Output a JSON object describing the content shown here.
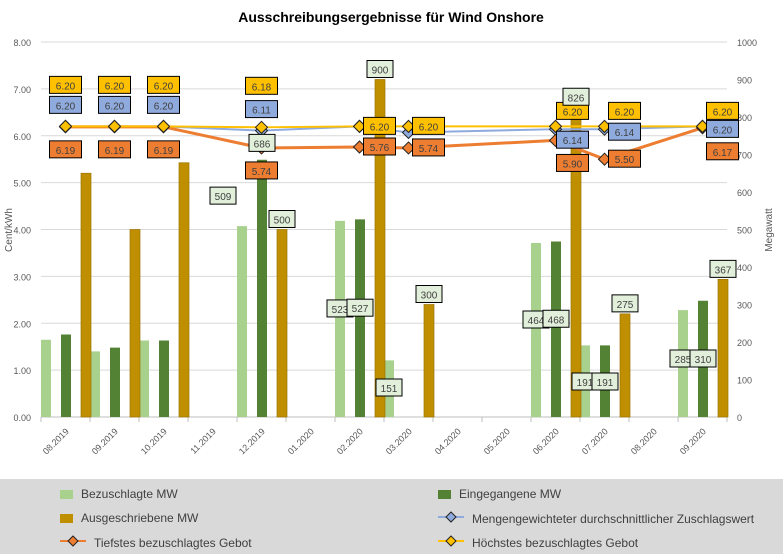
{
  "chart_data": {
    "type": "bar+line",
    "title": "Ausschreibungsergebnisse für Wind Onshore",
    "ylabel_left": "Cent/kWh",
    "ylabel_right": "Megawatt",
    "ylim_left": [
      0,
      8
    ],
    "ylim_right": [
      0,
      1000
    ],
    "yticks_left": [
      "0.00",
      "1.00",
      "2.00",
      "3.00",
      "4.00",
      "5.00",
      "6.00",
      "7.00",
      "8.00"
    ],
    "yticks_right": [
      "0",
      "100",
      "200",
      "300",
      "400",
      "500",
      "600",
      "700",
      "800",
      "900",
      "1000"
    ],
    "grid": true,
    "legend_position": "bottom",
    "categories": [
      "08.2019",
      "09.2019",
      "10.2019",
      "11.2019",
      "12.2019",
      "01.2020",
      "02.2020",
      "03.2020",
      "04.2020",
      "05.2020",
      "06.2020",
      "07.2020",
      "08.2020",
      "09.2020"
    ],
    "bar_series": [
      {
        "name": "Bezuschlagte MW",
        "color": "#a9d18e",
        "axis": "right",
        "values": [
          206,
          175,
          204,
          null,
          509,
          null,
          523,
          151,
          null,
          null,
          464,
          191,
          null,
          285
        ],
        "labels": [
          null,
          null,
          null,
          null,
          "509",
          null,
          "523",
          "151",
          null,
          null,
          "464",
          "191",
          null,
          "285"
        ]
      },
      {
        "name": "Eingegangene MW",
        "color": "#548235",
        "axis": "right",
        "values": [
          220,
          185,
          204,
          null,
          686,
          null,
          527,
          null,
          null,
          null,
          468,
          191,
          null,
          310
        ],
        "labels": [
          null,
          null,
          null,
          null,
          "686",
          null,
          "527",
          null,
          null,
          null,
          "468",
          "191",
          null,
          "310"
        ]
      },
      {
        "name": "Ausgeschriebene MW",
        "color": "#bf8f00",
        "axis": "right",
        "values": [
          650,
          500,
          678,
          null,
          500,
          null,
          900,
          300,
          null,
          null,
          826,
          275,
          null,
          367
        ],
        "labels": [
          null,
          null,
          null,
          null,
          "500",
          null,
          "900",
          "300",
          null,
          null,
          "826",
          "275",
          null,
          "367"
        ]
      }
    ],
    "line_series": [
      {
        "name": "Mengengewichteter durchschnittlicher Zuschlagswert",
        "color": "#8faadc",
        "axis": "left",
        "values": [
          6.2,
          6.2,
          6.2,
          null,
          6.11,
          null,
          6.2,
          6.07,
          null,
          null,
          6.14,
          6.14,
          null,
          6.2
        ],
        "labels": [
          "6.20",
          "6.20",
          "6.20",
          null,
          "6.11",
          null,
          null,
          null,
          null,
          null,
          "6.14",
          "6.14",
          null,
          "6.20"
        ]
      },
      {
        "name": "Tiefstes bezuschlagtes Gebot",
        "color": "#ed7d31",
        "axis": "left",
        "values": [
          6.19,
          6.19,
          6.19,
          null,
          5.74,
          null,
          5.76,
          5.74,
          null,
          null,
          5.9,
          5.5,
          null,
          6.17
        ],
        "labels": [
          "6.19",
          "6.19",
          "6.19",
          null,
          "5.74",
          null,
          "5.76",
          "5.74",
          null,
          null,
          "5.90",
          "5.50",
          null,
          "6.17"
        ]
      },
      {
        "name": "Höchstes bezuschlagtes Gebot",
        "color": "#ffc000",
        "axis": "left",
        "values": [
          6.2,
          6.2,
          6.2,
          null,
          6.18,
          null,
          6.2,
          6.2,
          null,
          null,
          6.2,
          6.2,
          null,
          6.2
        ],
        "labels": [
          "6.20",
          "6.20",
          "6.20",
          null,
          "6.18",
          null,
          "6.20",
          "6.20",
          null,
          null,
          "6.20",
          "6.20",
          null,
          "6.20"
        ]
      }
    ]
  }
}
